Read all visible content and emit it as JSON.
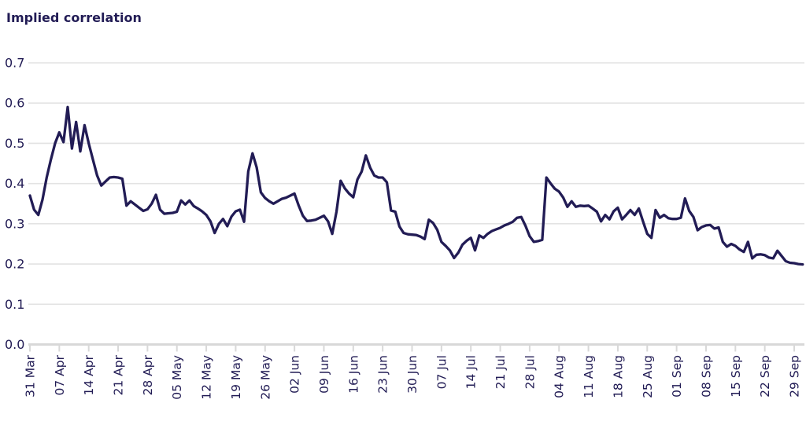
{
  "header": {
    "title": "Implied correlation"
  },
  "chart_data": {
    "type": "line",
    "title": "Implied correlation",
    "ylabel": "Implied correlation",
    "legend_position": "none",
    "grid": "horizontal",
    "line_color": "#221c55",
    "label_color": "#221c55",
    "grid_color": "#e3e3e3",
    "axis_color": "#d8d8d8",
    "ylim": [
      0.0,
      0.7
    ],
    "y_tick_labels": [
      "0.0",
      "0.1",
      "0.2",
      "0.3",
      "0.4",
      "0.5",
      "0.6",
      "0.7"
    ],
    "x_tick_labels": [
      "31 Mar",
      "07 Apr",
      "14 Apr",
      "21 Apr",
      "28 Apr",
      "05 May",
      "12 May",
      "19 May",
      "26 May",
      "02 Jun",
      "09 Jun",
      "16 Jun",
      "23 Jun",
      "30 Jun",
      "07 Jul",
      "14 Jul",
      "21 Jul",
      "28 Jul",
      "04 Aug",
      "11 Aug",
      "18 Aug",
      "25 Aug",
      "01 Sep",
      "08 Sep",
      "15 Sep",
      "22 Sep",
      "29 Sep"
    ],
    "points_per_tick": 7,
    "values": [
      0.37,
      0.335,
      0.322,
      0.36,
      0.415,
      0.46,
      0.5,
      0.527,
      0.503,
      0.59,
      0.487,
      0.553,
      0.48,
      0.545,
      0.5,
      0.46,
      0.42,
      0.395,
      0.405,
      0.415,
      0.416,
      0.415,
      0.412,
      0.345,
      0.356,
      0.348,
      0.34,
      0.332,
      0.336,
      0.35,
      0.372,
      0.335,
      0.325,
      0.326,
      0.327,
      0.33,
      0.358,
      0.348,
      0.358,
      0.344,
      0.338,
      0.331,
      0.322,
      0.306,
      0.277,
      0.3,
      0.312,
      0.294,
      0.318,
      0.331,
      0.335,
      0.305,
      0.43,
      0.475,
      0.44,
      0.378,
      0.364,
      0.356,
      0.35,
      0.356,
      0.362,
      0.365,
      0.37,
      0.375,
      0.345,
      0.32,
      0.307,
      0.308,
      0.31,
      0.315,
      0.32,
      0.306,
      0.275,
      0.33,
      0.407,
      0.388,
      0.375,
      0.366,
      0.41,
      0.43,
      0.47,
      0.44,
      0.42,
      0.415,
      0.415,
      0.403,
      0.333,
      0.33,
      0.293,
      0.277,
      0.274,
      0.273,
      0.272,
      0.268,
      0.262,
      0.31,
      0.302,
      0.285,
      0.255,
      0.245,
      0.234,
      0.215,
      0.228,
      0.248,
      0.258,
      0.265,
      0.234,
      0.271,
      0.265,
      0.275,
      0.282,
      0.286,
      0.29,
      0.296,
      0.3,
      0.305,
      0.315,
      0.317,
      0.295,
      0.269,
      0.255,
      0.257,
      0.26,
      0.415,
      0.4,
      0.387,
      0.38,
      0.365,
      0.342,
      0.356,
      0.342,
      0.345,
      0.344,
      0.345,
      0.338,
      0.33,
      0.306,
      0.322,
      0.311,
      0.331,
      0.34,
      0.311,
      0.322,
      0.334,
      0.322,
      0.338,
      0.306,
      0.275,
      0.265,
      0.334,
      0.315,
      0.322,
      0.314,
      0.312,
      0.312,
      0.315,
      0.363,
      0.332,
      0.317,
      0.284,
      0.292,
      0.296,
      0.297,
      0.288,
      0.291,
      0.255,
      0.243,
      0.25,
      0.245,
      0.236,
      0.23,
      0.255,
      0.214,
      0.223,
      0.224,
      0.222,
      0.216,
      0.214,
      0.233,
      0.22,
      0.207,
      0.203,
      0.202,
      0.2,
      0.199
    ]
  }
}
